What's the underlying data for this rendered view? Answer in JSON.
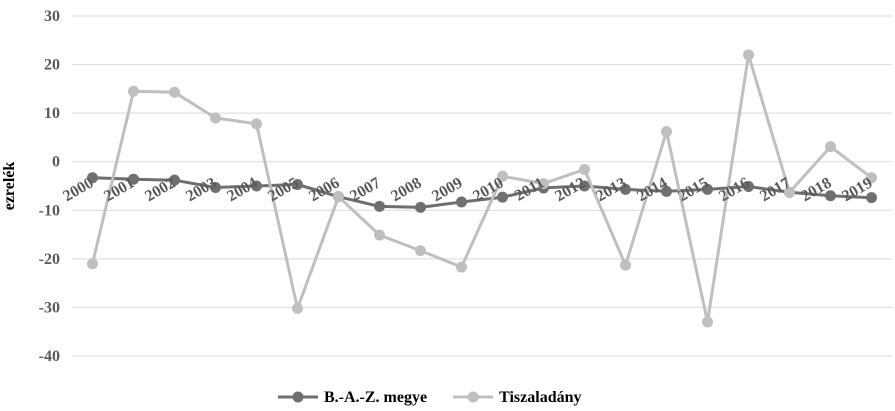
{
  "chart_data": {
    "type": "line",
    "title": "",
    "xlabel": "",
    "ylabel": "ezrelék",
    "ylim": [
      -40,
      30
    ],
    "yticks": [
      30,
      20,
      10,
      0,
      -10,
      -20,
      -30,
      -40
    ],
    "ytick_labels": [
      "30",
      "20",
      "10",
      "0",
      "-10",
      "-20",
      "-30",
      "-40"
    ],
    "grid": true,
    "legend_position": "bottom",
    "categories": [
      "2000",
      "2001",
      "2002",
      "2003",
      "2004",
      "2005",
      "2006",
      "2007",
      "2008",
      "2009",
      "2010",
      "2011",
      "2012",
      "2013",
      "2014",
      "2015",
      "2016",
      "2017",
      "2018",
      "2019"
    ],
    "series": [
      {
        "name": "B.-A.-Z. megye",
        "color": "#6f6f6f",
        "values": [
          -3.3,
          -3.6,
          -3.8,
          -5.3,
          -5.0,
          -4.7,
          -7.2,
          -9.2,
          -9.4,
          -8.3,
          -7.3,
          -5.4,
          -5.0,
          -5.7,
          -6.1,
          -5.7,
          -5.1,
          -6.3,
          -7.0,
          -7.4
        ]
      },
      {
        "name": "Tiszaladány",
        "color": "#bfbfbf",
        "values": [
          -21.0,
          14.5,
          14.3,
          9.0,
          7.8,
          -30.2,
          -7.2,
          -15.1,
          -18.3,
          -21.7,
          -3.0,
          -4.5,
          -1.6,
          -21.3,
          6.2,
          -33.0,
          22.0,
          -6.3,
          3.1,
          -3.3
        ]
      }
    ]
  }
}
